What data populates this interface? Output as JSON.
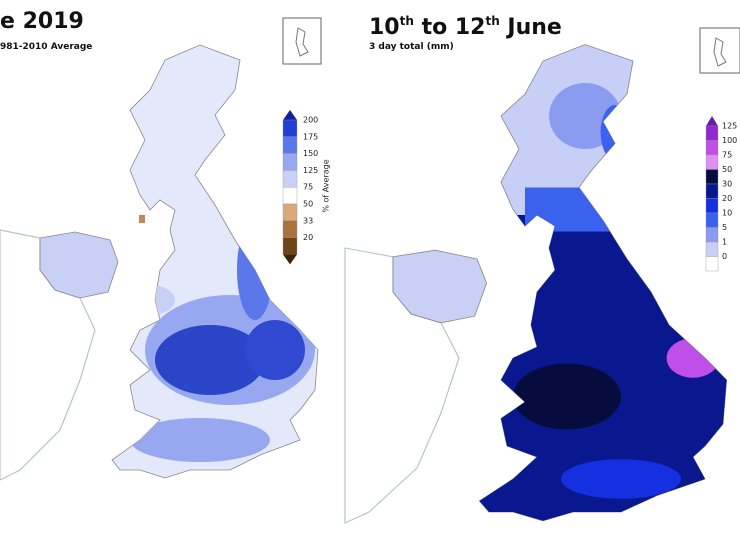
{
  "left_panel": {
    "title": "e 2019",
    "subtitle": "981-2010 Average",
    "legend": {
      "label": "% of Average",
      "items": [
        {
          "label": "200",
          "color": "#1f3fd6"
        },
        {
          "label": "175",
          "color": "#5a78ea"
        },
        {
          "label": "150",
          "color": "#97a8f0"
        },
        {
          "label": "125",
          "color": "#c9d0f6"
        },
        {
          "label": "75",
          "color": "#ffffff"
        },
        {
          "label": "50",
          "color": "#d8a878"
        },
        {
          "label": "33",
          "color": "#a9733e"
        },
        {
          "label": "20",
          "color": "#6e4419"
        }
      ],
      "top_color": "#0f1f9e",
      "bottom_color": "#3d2208"
    }
  },
  "right_panel": {
    "title_parts": [
      "10",
      "th",
      " to 12",
      "th",
      " June"
    ],
    "subtitle": "3 day total (mm)",
    "legend": {
      "items": [
        {
          "label": "125",
          "color": "#8e2ad0"
        },
        {
          "label": "100",
          "color": "#c04ee8"
        },
        {
          "label": "75",
          "color": "#e08ef0"
        },
        {
          "label": "50",
          "color": "#070c3e"
        },
        {
          "label": "30",
          "color": "#0a1890"
        },
        {
          "label": "20",
          "color": "#1530e0"
        },
        {
          "label": "10",
          "color": "#3a62ee"
        },
        {
          "label": "5",
          "color": "#8a9cf0"
        },
        {
          "label": "1",
          "color": "#c8cff6"
        },
        {
          "label": "0",
          "color": "#ffffff"
        }
      ],
      "top_color": "#6a1aa8"
    }
  }
}
